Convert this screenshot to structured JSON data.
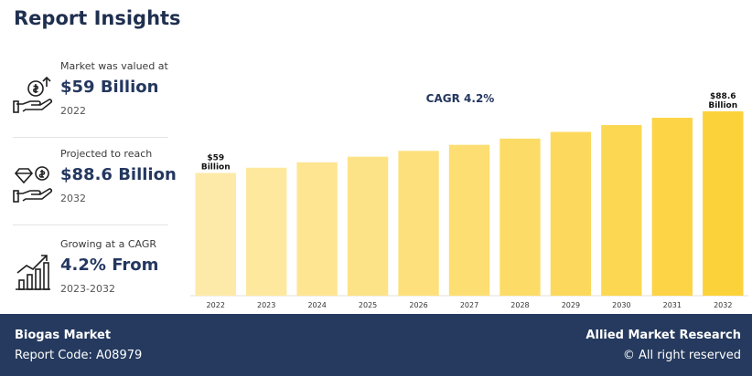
{
  "title": "Report Insights",
  "stats": [
    {
      "label": "Market was valued at",
      "value": "$59 Billion",
      "year": "2022"
    },
    {
      "label": "Projected to reach",
      "value": "$88.6 Billion",
      "year": "2032"
    },
    {
      "label": "Growing at a CAGR",
      "value": "4.2% From",
      "year": "2023-2032"
    }
  ],
  "footer": {
    "market": "Biogas Market",
    "report_code": "Report Code: A08979",
    "brand": "Allied Market Research",
    "rights": "© All right reserved"
  },
  "colors": {
    "title": "#1f2f4f",
    "footer_bg": "#253a5e",
    "bar_light": "#fdeaa8",
    "bar_dark": "#fcd23b"
  },
  "icons": [
    "money-growth-icon",
    "diamond-money-icon",
    "growth-chart-icon"
  ],
  "chart_data": {
    "type": "bar",
    "title": "CAGR 4.2%",
    "categories": [
      "2022",
      "2023",
      "2024",
      "2025",
      "2026",
      "2027",
      "2028",
      "2029",
      "2030",
      "2031",
      "2032"
    ],
    "values": [
      59,
      61.5,
      64.1,
      66.8,
      69.6,
      72.5,
      75.5,
      78.7,
      82.0,
      85.5,
      88.6
    ],
    "data_labels": [
      {
        "index": 0,
        "lines": [
          "$59",
          "Billion"
        ]
      },
      {
        "index": 10,
        "lines": [
          "$88.6",
          "Billion"
        ]
      }
    ],
    "xlabel": "",
    "ylabel": "",
    "ylim": [
      0,
      100
    ],
    "grid": false,
    "legend": "none"
  }
}
